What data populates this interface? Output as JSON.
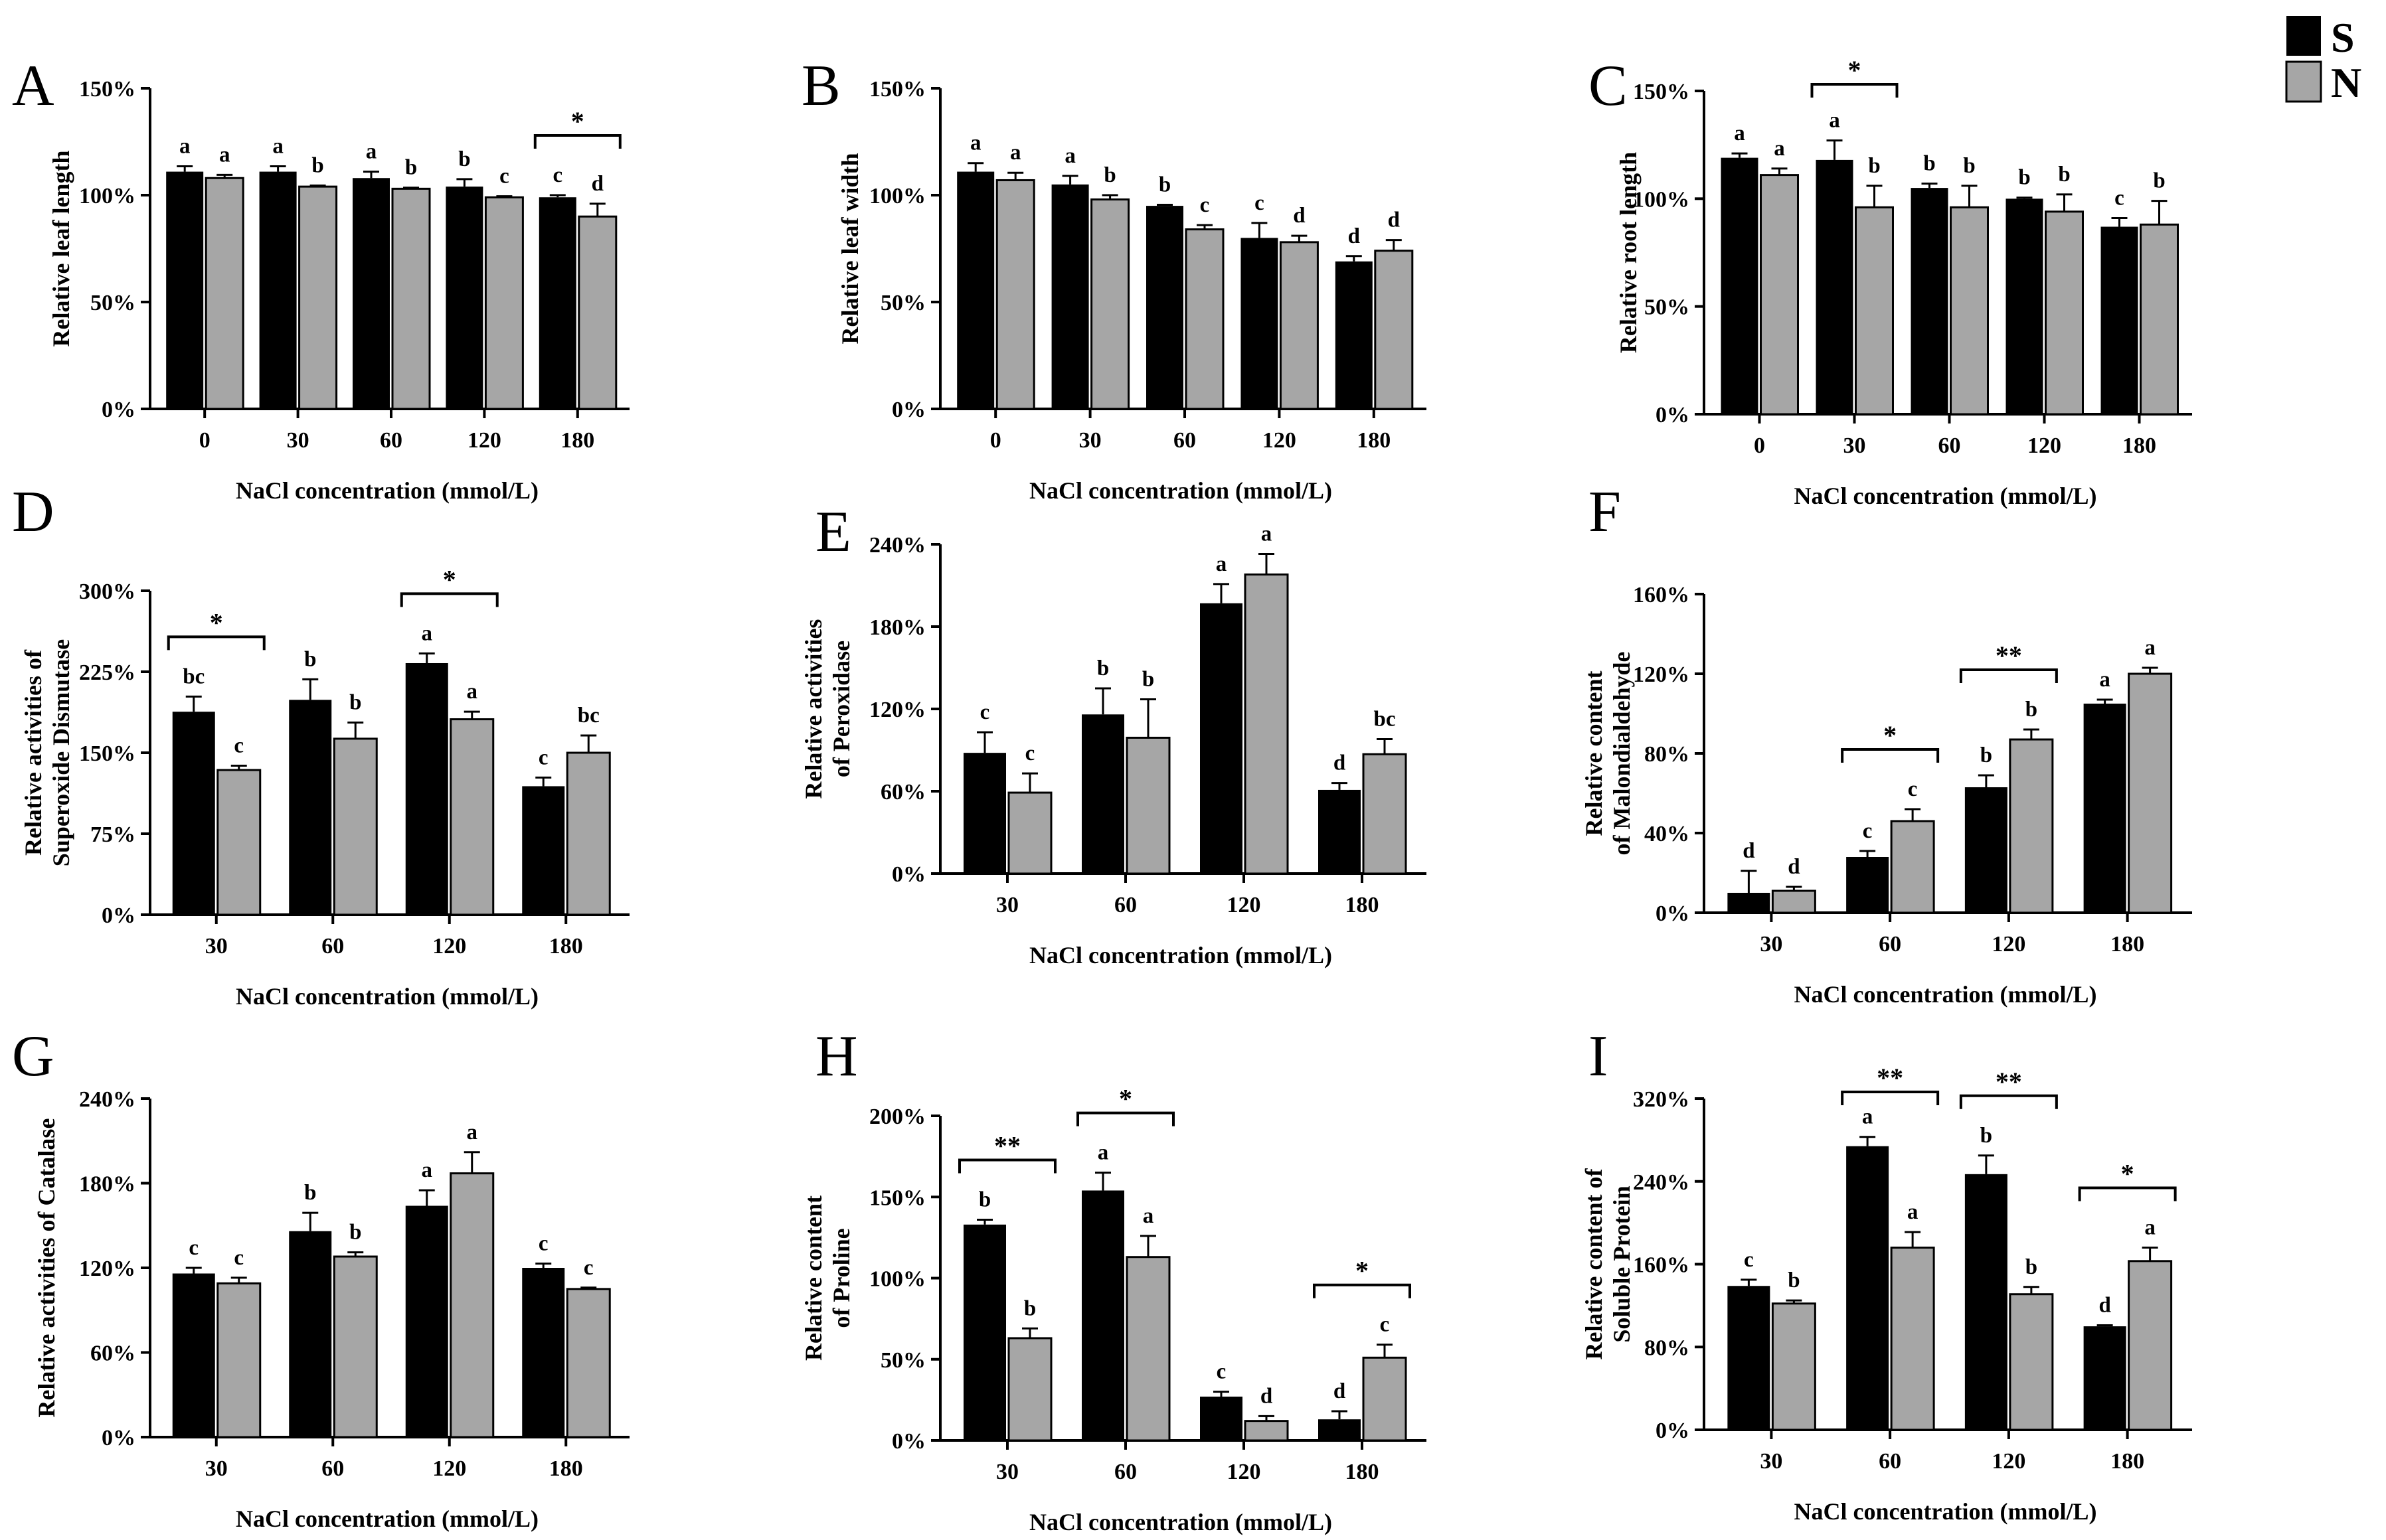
{
  "colors": {
    "S": "#000000",
    "N": "#a6a6a6",
    "axis": "#000000"
  },
  "legend": {
    "series": [
      {
        "key": "S",
        "label": "S"
      },
      {
        "key": "N",
        "label": "N"
      }
    ]
  },
  "chart_data": [
    {
      "panel": "A",
      "type": "bar",
      "xlabel": "NaCl concentration (mmol/L)",
      "ylabel": [
        "Relative leaf length"
      ],
      "categories": [
        "0",
        "30",
        "60",
        "120",
        "180"
      ],
      "ylim": [
        0,
        150
      ],
      "yticks": [
        0,
        50,
        100,
        150
      ],
      "ysuffix": "%",
      "series": [
        {
          "name": "S",
          "values": [
            111,
            111,
            108,
            104,
            99
          ],
          "errors": [
            2.5,
            2.5,
            3,
            3.5,
            1
          ],
          "letters": [
            "a",
            "a",
            "a",
            "b",
            "c"
          ]
        },
        {
          "name": "N",
          "values": [
            108,
            104,
            103,
            99,
            90
          ],
          "errors": [
            1.5,
            0.5,
            0.5,
            0.5,
            6
          ],
          "letters": [
            "a",
            "b",
            "b",
            "c",
            "d"
          ]
        }
      ],
      "significance": [
        {
          "index": 4,
          "label": "*"
        }
      ]
    },
    {
      "panel": "B",
      "type": "bar",
      "xlabel": "NaCl concentration (mmol/L)",
      "ylabel": [
        "Relative leaf width"
      ],
      "categories": [
        "0",
        "30",
        "60",
        "120",
        "180"
      ],
      "ylim": [
        0,
        150
      ],
      "yticks": [
        0,
        50,
        100,
        150
      ],
      "ysuffix": "%",
      "series": [
        {
          "name": "S",
          "values": [
            111,
            105,
            95,
            80,
            69
          ],
          "errors": [
            4,
            4,
            0.5,
            7,
            2.5
          ],
          "letters": [
            "a",
            "a",
            "b",
            "c",
            "d"
          ]
        },
        {
          "name": "N",
          "values": [
            107,
            98,
            84,
            78,
            74
          ],
          "errors": [
            3.5,
            2,
            2,
            3,
            5
          ],
          "letters": [
            "a",
            "b",
            "c",
            "d",
            "d"
          ]
        }
      ],
      "significance": []
    },
    {
      "panel": "C",
      "type": "bar",
      "xlabel": "NaCl concentration (mmol/L)",
      "ylabel": [
        "Relative root length"
      ],
      "categories": [
        "0",
        "30",
        "60",
        "120",
        "180"
      ],
      "ylim": [
        0,
        150
      ],
      "yticks": [
        0,
        50,
        100,
        150
      ],
      "ysuffix": "%",
      "series": [
        {
          "name": "S",
          "values": [
            119,
            118,
            105,
            100,
            87
          ],
          "errors": [
            2,
            9,
            2,
            0.5,
            4
          ],
          "letters": [
            "a",
            "a",
            "b",
            "b",
            "c"
          ]
        },
        {
          "name": "N",
          "values": [
            111,
            96,
            96,
            94,
            88
          ],
          "errors": [
            3,
            10,
            10,
            8,
            11
          ],
          "letters": [
            "a",
            "b",
            "b",
            "b",
            "b"
          ]
        }
      ],
      "significance": [
        {
          "index": 1,
          "label": "*"
        }
      ]
    },
    {
      "panel": "D",
      "type": "bar",
      "xlabel": "NaCl concentration (mmol/L)",
      "ylabel": [
        "Relative activities of",
        "Superoxide Dismutase"
      ],
      "categories": [
        "30",
        "60",
        "120",
        "180"
      ],
      "ylim": [
        0,
        300
      ],
      "yticks": [
        0,
        75,
        150,
        225,
        300
      ],
      "ysuffix": "%",
      "series": [
        {
          "name": "S",
          "values": [
            188,
            199,
            233,
            119
          ],
          "errors": [
            14,
            19,
            9,
            8
          ],
          "letters": [
            "bc",
            "b",
            "a",
            "c"
          ]
        },
        {
          "name": "N",
          "values": [
            134,
            163,
            181,
            150
          ],
          "errors": [
            4,
            15,
            7,
            16
          ],
          "letters": [
            "c",
            "b",
            "a",
            "bc"
          ]
        }
      ],
      "significance": [
        {
          "index": 0,
          "label": "*"
        },
        {
          "index": 2,
          "label": "*"
        }
      ]
    },
    {
      "panel": "E",
      "type": "bar",
      "xlabel": "NaCl concentration (mmol/L)",
      "ylabel": [
        "Relative activities",
        "of Peroxidase"
      ],
      "categories": [
        "30",
        "60",
        "120",
        "180"
      ],
      "ylim": [
        0,
        240
      ],
      "yticks": [
        0,
        60,
        120,
        180,
        240
      ],
      "ysuffix": "%",
      "series": [
        {
          "name": "S",
          "values": [
            88,
            116,
            197,
            61
          ],
          "errors": [
            15,
            19,
            14,
            5
          ],
          "letters": [
            "c",
            "b",
            "a",
            "d"
          ]
        },
        {
          "name": "N",
          "values": [
            59,
            99,
            218,
            87
          ],
          "errors": [
            14,
            28,
            15,
            11
          ],
          "letters": [
            "c",
            "b",
            "a",
            "bc"
          ]
        }
      ],
      "significance": []
    },
    {
      "panel": "F",
      "type": "bar",
      "xlabel": "NaCl concentration (mmol/L)",
      "ylabel": [
        "Relative content",
        "of Malondialdehyde"
      ],
      "categories": [
        "30",
        "60",
        "120",
        "180"
      ],
      "ylim": [
        0,
        160
      ],
      "yticks": [
        0,
        40,
        80,
        120,
        160
      ],
      "ysuffix": "%",
      "series": [
        {
          "name": "S",
          "values": [
            10,
            28,
            63,
            105
          ],
          "errors": [
            11,
            3,
            6,
            2
          ],
          "letters": [
            "d",
            "c",
            "b",
            "a"
          ]
        },
        {
          "name": "N",
          "values": [
            11,
            46,
            87,
            120
          ],
          "errors": [
            2,
            6,
            5,
            3
          ],
          "letters": [
            "d",
            "c",
            "b",
            "a"
          ]
        }
      ],
      "significance": [
        {
          "index": 1,
          "label": "*"
        },
        {
          "index": 2,
          "label": "**"
        }
      ]
    },
    {
      "panel": "G",
      "type": "bar",
      "xlabel": "NaCl concentration (mmol/L)",
      "ylabel": [
        "Relative activities of Catalase"
      ],
      "categories": [
        "30",
        "60",
        "120",
        "180"
      ],
      "ylim": [
        0,
        240
      ],
      "yticks": [
        0,
        60,
        120,
        180,
        240
      ],
      "ysuffix": "%",
      "series": [
        {
          "name": "S",
          "values": [
            116,
            146,
            164,
            120
          ],
          "errors": [
            4,
            13,
            11,
            3
          ],
          "letters": [
            "c",
            "b",
            "a",
            "c"
          ]
        },
        {
          "name": "N",
          "values": [
            109,
            128,
            187,
            105
          ],
          "errors": [
            4,
            3,
            15,
            1
          ],
          "letters": [
            "c",
            "b",
            "a",
            "c"
          ]
        }
      ],
      "significance": []
    },
    {
      "panel": "H",
      "type": "bar",
      "xlabel": "NaCl concentration (mmol/L)",
      "ylabel": [
        "Relative content",
        "of Proline"
      ],
      "categories": [
        "30",
        "60",
        "120",
        "180"
      ],
      "ylim": [
        0,
        200
      ],
      "yticks": [
        0,
        50,
        100,
        150,
        200
      ],
      "ysuffix": "%",
      "series": [
        {
          "name": "S",
          "values": [
            133,
            154,
            27,
            13
          ],
          "errors": [
            3,
            11,
            3,
            5
          ],
          "letters": [
            "b",
            "a",
            "c",
            "d"
          ]
        },
        {
          "name": "N",
          "values": [
            63,
            113,
            12,
            51
          ],
          "errors": [
            6,
            13,
            3,
            8
          ],
          "letters": [
            "b",
            "a",
            "d",
            "c"
          ]
        }
      ],
      "significance": [
        {
          "index": 0,
          "label": "**"
        },
        {
          "index": 1,
          "label": "*"
        },
        {
          "index": 3,
          "label": "*"
        }
      ]
    },
    {
      "panel": "I",
      "type": "bar",
      "xlabel": "NaCl concentration (mmol/L)",
      "ylabel": [
        "Relative content of",
        "Soluble Protein"
      ],
      "categories": [
        "30",
        "60",
        "120",
        "180"
      ],
      "ylim": [
        0,
        320
      ],
      "yticks": [
        0,
        80,
        160,
        240,
        320
      ],
      "ysuffix": "%",
      "series": [
        {
          "name": "S",
          "values": [
            139,
            274,
            247,
            100
          ],
          "errors": [
            6,
            9,
            18,
            1
          ],
          "letters": [
            "c",
            "a",
            "b",
            "d"
          ]
        },
        {
          "name": "N",
          "values": [
            122,
            176,
            131,
            163
          ],
          "errors": [
            3,
            15,
            7,
            13
          ],
          "letters": [
            "b",
            "a",
            "b",
            "a"
          ]
        }
      ],
      "significance": [
        {
          "index": 1,
          "label": "**"
        },
        {
          "index": 2,
          "label": "**"
        },
        {
          "index": 3,
          "label": "*"
        }
      ]
    }
  ]
}
